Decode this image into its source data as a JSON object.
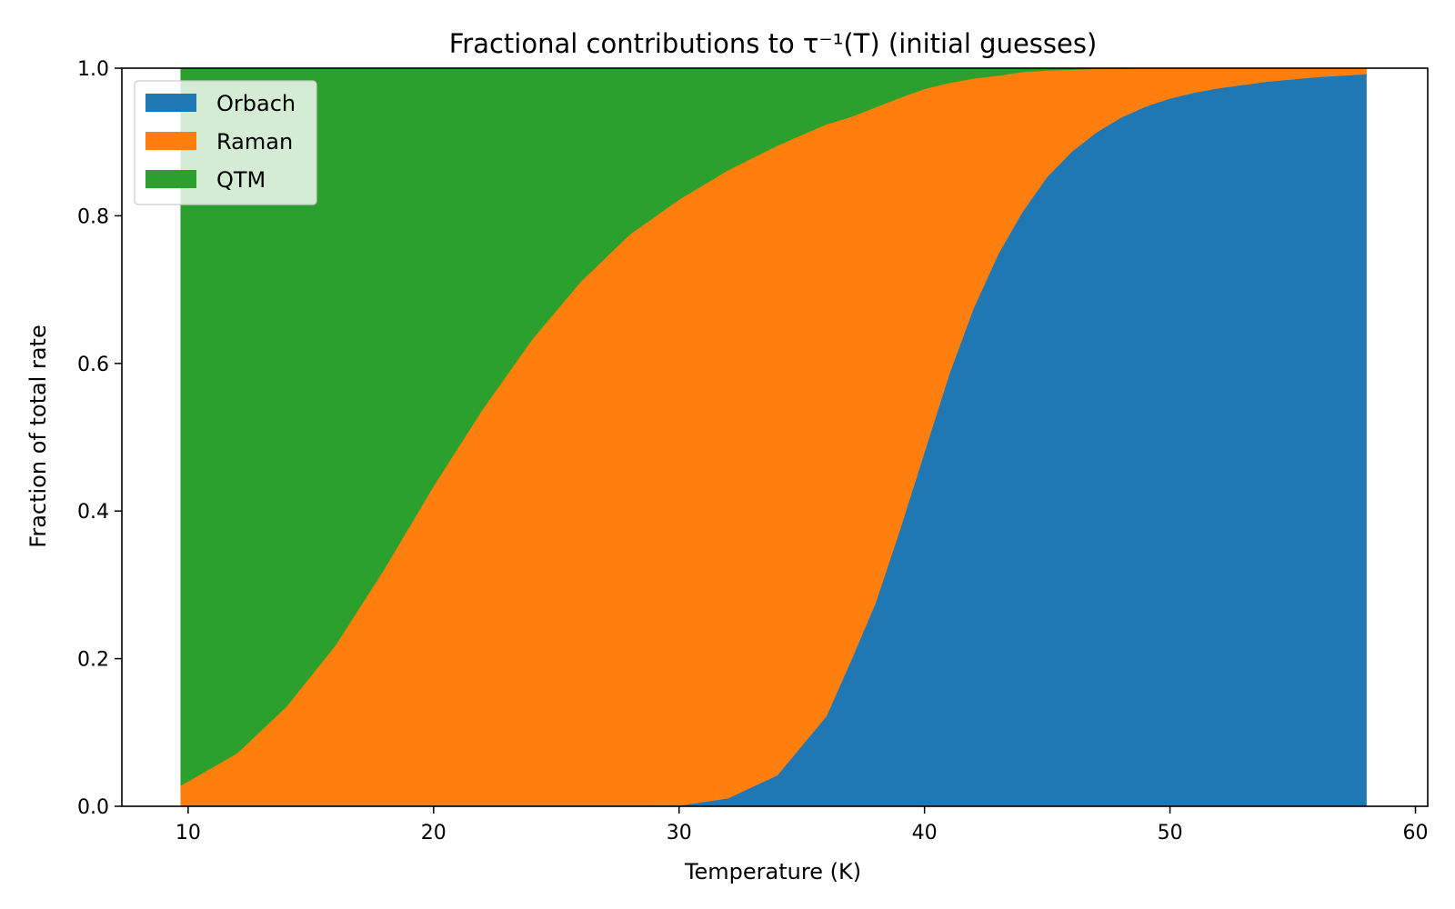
{
  "chart_data": {
    "type": "area",
    "stacked": true,
    "normalized": true,
    "title": "Fractional contributions to τ⁻¹(T) (initial guesses)",
    "xlabel": "Temperature (K)",
    "ylabel": "Fraction of total rate",
    "xlim": [
      7.3,
      60.5
    ],
    "ylim": [
      0.0,
      1.0
    ],
    "xticks": [
      10,
      20,
      30,
      40,
      50,
      60
    ],
    "yticks": [
      0.0,
      0.2,
      0.4,
      0.6,
      0.8,
      1.0
    ],
    "xtick_labels": [
      "10",
      "20",
      "30",
      "40",
      "50",
      "60"
    ],
    "ytick_labels": [
      "0.0",
      "0.2",
      "0.4",
      "0.6",
      "0.8",
      "1.0"
    ],
    "grid": false,
    "legend_position": "upper-left",
    "x": [
      9.7,
      12,
      14,
      16,
      18,
      20,
      22,
      24,
      26,
      28,
      30,
      32,
      34,
      36,
      37,
      38,
      39,
      40,
      41,
      42,
      43,
      44,
      45,
      46,
      47,
      48,
      49,
      50,
      51,
      52,
      54,
      56,
      58
    ],
    "series": [
      {
        "name": "Orbach",
        "color": "#1f77b4",
        "values": [
          0.0,
          0.0,
          0.0,
          0.0,
          0.0,
          0.0,
          0.0,
          0.0,
          0.0,
          0.0,
          0.001,
          0.011,
          0.042,
          0.122,
          0.197,
          0.275,
          0.375,
          0.48,
          0.585,
          0.675,
          0.748,
          0.806,
          0.853,
          0.887,
          0.913,
          0.933,
          0.948,
          0.959,
          0.967,
          0.973,
          0.982,
          0.988,
          0.992
        ]
      },
      {
        "name": "Raman",
        "color": "#ff7f0e",
        "values": [
          0.028,
          0.072,
          0.135,
          0.218,
          0.322,
          0.434,
          0.538,
          0.632,
          0.711,
          0.775,
          0.821,
          0.851,
          0.853,
          0.802,
          0.737,
          0.672,
          0.585,
          0.492,
          0.395,
          0.311,
          0.242,
          0.189,
          0.144,
          0.111,
          0.086,
          0.066,
          0.052,
          0.041,
          0.033,
          0.027,
          0.018,
          0.012,
          0.008
        ]
      },
      {
        "name": "QTM",
        "color": "#2ca02c",
        "values": [
          0.972,
          0.928,
          0.865,
          0.782,
          0.678,
          0.566,
          0.462,
          0.368,
          0.289,
          0.225,
          0.178,
          0.138,
          0.105,
          0.076,
          0.066,
          0.053,
          0.04,
          0.028,
          0.02,
          0.014,
          0.01,
          0.005,
          0.003,
          0.002,
          0.001,
          0.001,
          0.0,
          0.0,
          0.0,
          0.0,
          0.0,
          0.0,
          0.0
        ]
      }
    ]
  }
}
